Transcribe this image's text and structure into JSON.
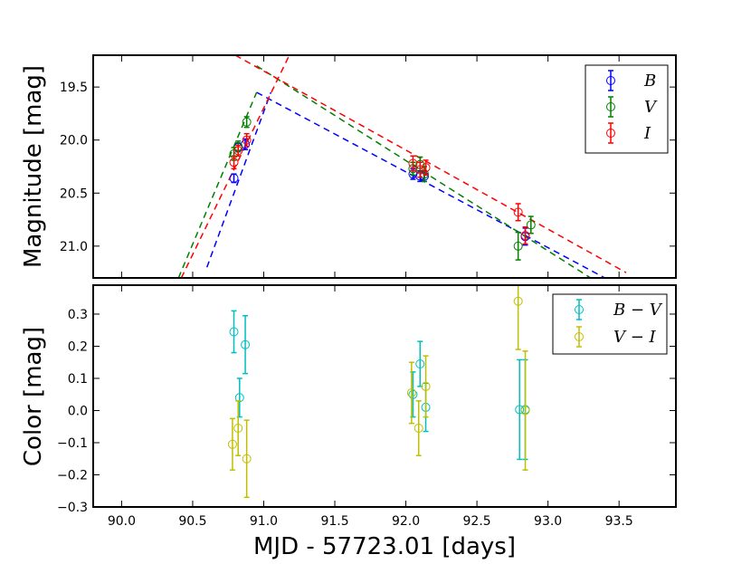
{
  "chart_data": [
    {
      "type": "scatter",
      "panel": "top",
      "ylabel": "Magnitude [mag]",
      "xlim": [
        89.8,
        93.9
      ],
      "ylim": [
        21.3,
        19.2
      ],
      "y_inverted": true,
      "xticks": [
        90.0,
        90.5,
        91.0,
        91.5,
        92.0,
        92.5,
        93.0,
        93.5
      ],
      "yticks": [
        19.5,
        20.0,
        20.5,
        21.0
      ],
      "ytick_labels": [
        "19.5",
        "20.0",
        "20.5",
        "21.0"
      ],
      "legend": {
        "location": "top-right"
      },
      "series": [
        {
          "name": "B",
          "color": "#0000ff",
          "points": [
            {
              "x": 90.79,
              "y": 20.36,
              "err": 0.04
            },
            {
              "x": 90.82,
              "y": 20.07,
              "err": 0.04
            },
            {
              "x": 90.87,
              "y": 20.04,
              "err": 0.05
            },
            {
              "x": 92.05,
              "y": 20.32,
              "err": 0.05
            },
            {
              "x": 92.1,
              "y": 20.34,
              "err": 0.05
            },
            {
              "x": 92.13,
              "y": 20.34,
              "err": 0.05
            },
            {
              "x": 92.84,
              "y": 20.91,
              "err": 0.08
            }
          ],
          "fits": [
            {
              "x1": 90.6,
              "y1": 21.2,
              "x2": 91.05,
              "y2": 19.55
            },
            {
              "x1": 90.95,
              "y1": 19.55,
              "x2": 93.4,
              "y2": 21.3
            }
          ]
        },
        {
          "name": "V",
          "color": "#008000",
          "points": [
            {
              "x": 90.79,
              "y": 20.13,
              "err": 0.06
            },
            {
              "x": 90.82,
              "y": 20.06,
              "err": 0.05
            },
            {
              "x": 90.88,
              "y": 19.83,
              "err": 0.05
            },
            {
              "x": 92.05,
              "y": 20.27,
              "err": 0.06
            },
            {
              "x": 92.1,
              "y": 20.23,
              "err": 0.07
            },
            {
              "x": 92.13,
              "y": 20.32,
              "err": 0.07
            },
            {
              "x": 92.79,
              "y": 21.0,
              "err": 0.13
            },
            {
              "x": 92.88,
              "y": 20.8,
              "err": 0.08
            }
          ],
          "fits": [
            {
              "x1": 90.4,
              "y1": 21.3,
              "x2": 90.95,
              "y2": 19.55
            },
            {
              "x1": 90.95,
              "y1": 19.3,
              "x2": 93.3,
              "y2": 21.3
            }
          ]
        },
        {
          "name": "I",
          "color": "#ff0000",
          "points": [
            {
              "x": 90.79,
              "y": 20.21,
              "err": 0.06
            },
            {
              "x": 90.82,
              "y": 20.1,
              "err": 0.05
            },
            {
              "x": 90.88,
              "y": 20.0,
              "err": 0.06
            },
            {
              "x": 92.05,
              "y": 20.22,
              "err": 0.07
            },
            {
              "x": 92.1,
              "y": 20.28,
              "err": 0.07
            },
            {
              "x": 92.14,
              "y": 20.26,
              "err": 0.07
            },
            {
              "x": 92.79,
              "y": 20.68,
              "err": 0.08
            },
            {
              "x": 92.84,
              "y": 20.9,
              "err": 0.08
            }
          ],
          "fits": [
            {
              "x1": 90.42,
              "y1": 21.3,
              "x2": 91.18,
              "y2": 19.2
            },
            {
              "x1": 90.8,
              "y1": 19.2,
              "x2": 93.55,
              "y2": 21.25
            }
          ]
        }
      ]
    },
    {
      "type": "scatter",
      "panel": "bottom",
      "xlabel": "MJD - 57723.01 [days]",
      "ylabel": "Color [mag]",
      "xlim": [
        89.8,
        93.9
      ],
      "ylim": [
        -0.3,
        0.39
      ],
      "xticks": [
        90.0,
        90.5,
        91.0,
        91.5,
        92.0,
        92.5,
        93.0,
        93.5
      ],
      "xtick_labels": [
        "90.0",
        "90.5",
        "91.0",
        "91.5",
        "92.0",
        "92.5",
        "93.0",
        "93.5"
      ],
      "yticks": [
        -0.3,
        -0.2,
        -0.1,
        0.0,
        0.1,
        0.2,
        0.3
      ],
      "ytick_labels": [
        "−0.3",
        "−0.2",
        "−0.1",
        "0.0",
        "0.1",
        "0.2",
        "0.3"
      ],
      "legend": {
        "location": "top-right"
      },
      "series": [
        {
          "name": "B − V",
          "color": "#00bfbf",
          "points": [
            {
              "x": 90.79,
              "y": 0.245,
              "err": 0.065
            },
            {
              "x": 90.83,
              "y": 0.04,
              "err": 0.06
            },
            {
              "x": 90.87,
              "y": 0.205,
              "err": 0.09
            },
            {
              "x": 92.05,
              "y": 0.05,
              "err": 0.07
            },
            {
              "x": 92.1,
              "y": 0.145,
              "err": 0.07
            },
            {
              "x": 92.14,
              "y": 0.01,
              "err": 0.075
            },
            {
              "x": 92.8,
              "y": 0.003,
              "err": 0.155
            },
            {
              "x": 92.84,
              "y": 0.003,
              "err": 0.155
            }
          ]
        },
        {
          "name": "V − I",
          "color": "#bfbf00",
          "points": [
            {
              "x": 90.78,
              "y": -0.105,
              "err": 0.08
            },
            {
              "x": 90.82,
              "y": -0.055,
              "err": 0.085
            },
            {
              "x": 90.88,
              "y": -0.15,
              "err": 0.12
            },
            {
              "x": 92.04,
              "y": 0.055,
              "err": 0.095
            },
            {
              "x": 92.09,
              "y": -0.055,
              "err": 0.085
            },
            {
              "x": 92.14,
              "y": 0.075,
              "err": 0.095
            },
            {
              "x": 92.79,
              "y": 0.34,
              "err": 0.15
            },
            {
              "x": 92.84,
              "y": 0.0,
              "err": 0.185
            }
          ]
        }
      ]
    }
  ]
}
